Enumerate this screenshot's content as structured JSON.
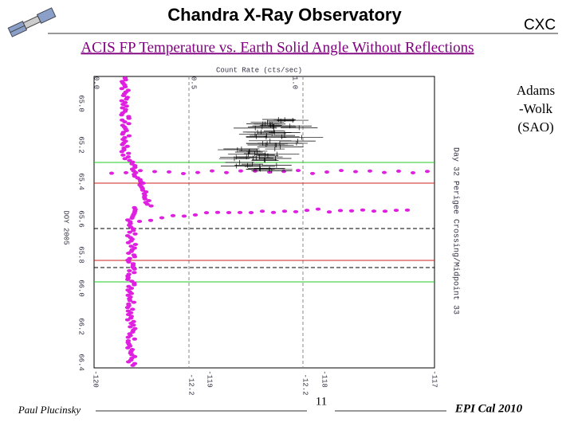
{
  "header": {
    "title": "Chandra X-Ray Observatory",
    "logo_text": "CXC",
    "subtitle": "ACIS FP Temperature vs. Earth Solid Angle Without Reflections"
  },
  "side_note": {
    "lines": [
      "Adams",
      "-Wolk",
      "(SAO)"
    ]
  },
  "figure": {
    "top_axis_label": "Count Rate (cts/sec)",
    "top_ticks": [
      "0.0",
      "0.5",
      "1.0"
    ],
    "left_axis_label": "DOY 2005",
    "left_ticks": [
      "65.0",
      "65.2",
      "65.4",
      "65.6",
      "65.8",
      "66.0",
      "66.2",
      "66.4"
    ],
    "bottom_ticks": [
      "-120",
      "-119",
      "-118",
      "-117"
    ],
    "bottom_sub_ticks": [
      "-12.2",
      "-12.2"
    ],
    "right_label": "Day 32 Perigee Crossing/Midpoint 33"
  },
  "footer": {
    "author": "Paul Plucinsky",
    "page": "11",
    "event": "EPI Cal 2010"
  }
}
